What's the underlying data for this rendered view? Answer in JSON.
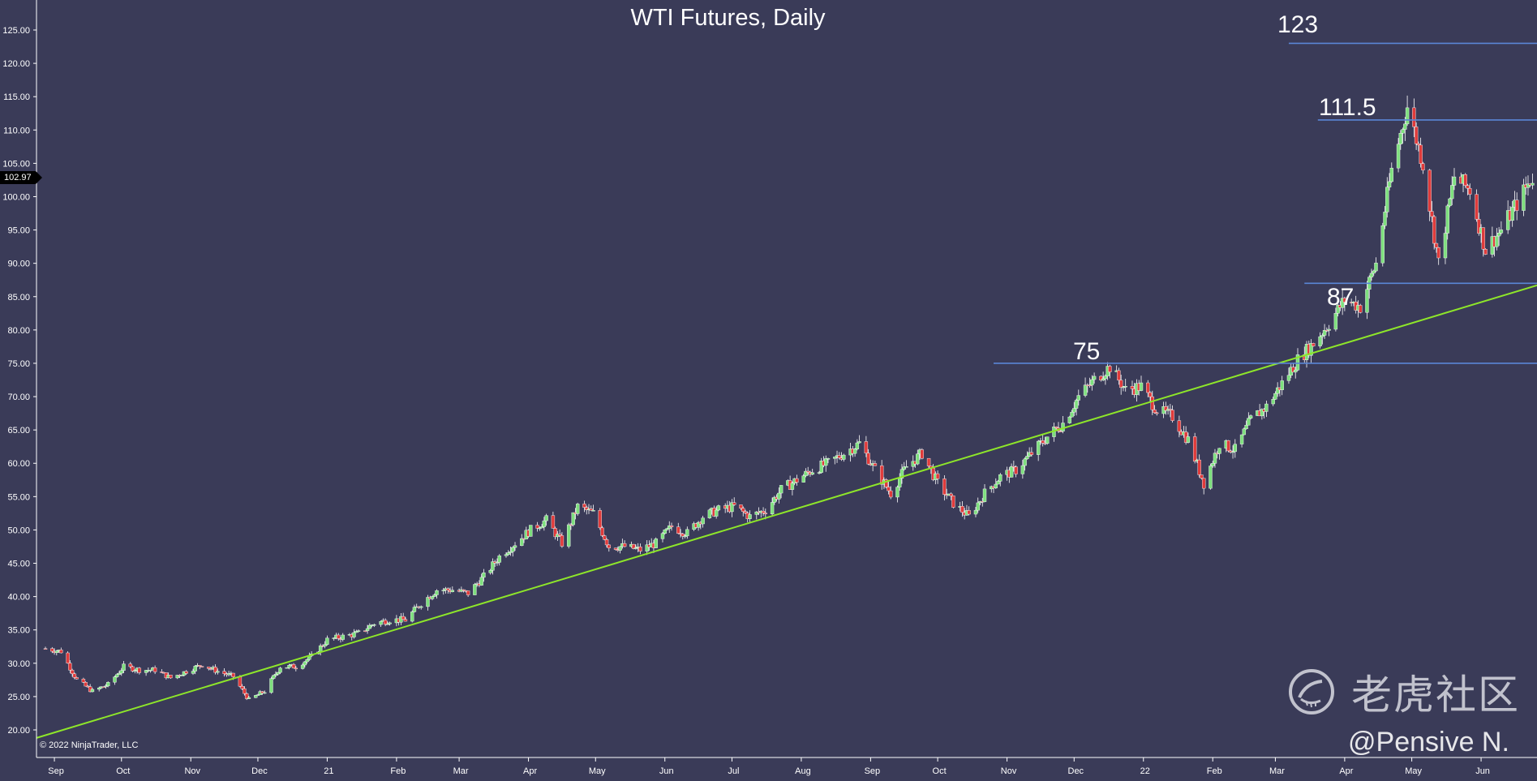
{
  "title": "WTI Futures, Daily",
  "copyright": "© 2022 NinjaTrader, LLC",
  "watermark": {
    "text": "老虎社区",
    "logo_icon": "tiger-logo-icon"
  },
  "handle": "@Pensive N.",
  "current_price": "102.97",
  "chart_data": {
    "type": "candlestick",
    "title": "WTI Futures, Daily",
    "y_axis": {
      "ticks": [
        "20.00",
        "25.00",
        "30.00",
        "35.00",
        "40.00",
        "45.00",
        "50.00",
        "55.00",
        "60.00",
        "65.00",
        "70.00",
        "75.00",
        "80.00",
        "85.00",
        "90.00",
        "95.00",
        "100.00",
        "105.00",
        "110.00",
        "115.00",
        "120.00",
        "125.00"
      ],
      "range": [
        18.6,
        127.1
      ]
    },
    "x_axis": {
      "ticks": [
        "Sep",
        "Oct",
        "Nov",
        "Dec",
        "21",
        "Feb",
        "Mar",
        "Apr",
        "May",
        "Jun",
        "Jul",
        "Aug",
        "Sep",
        "Oct",
        "Nov",
        "Dec",
        "22",
        "Feb",
        "Mar",
        "Apr",
        "May",
        "Jun"
      ],
      "tick_dates": [
        "2020-09-01",
        "2020-10-01",
        "2020-11-01",
        "2020-12-01",
        "2021-01-01",
        "2021-02-01",
        "2021-03-01",
        "2021-04-01",
        "2021-05-01",
        "2021-06-01",
        "2021-07-01",
        "2021-08-01",
        "2021-09-01",
        "2021-10-01",
        "2021-11-01",
        "2021-12-01",
        "2022-01-01",
        "2022-02-01",
        "2022-03-01",
        "2022-04-01",
        "2022-05-01",
        "2022-06-01"
      ],
      "range": [
        "2020-08-24",
        "2022-06-26"
      ]
    },
    "up_color": "#7ee07e",
    "down_color": "#e03b3b",
    "close_path": [
      [
        "2020-08-28",
        32.2
      ],
      [
        "2020-09-04",
        31.8
      ],
      [
        "2020-09-11",
        27.5
      ],
      [
        "2020-09-18",
        25.8
      ],
      [
        "2020-09-25",
        26.8
      ],
      [
        "2020-10-02",
        29.5
      ],
      [
        "2020-10-09",
        29.0
      ],
      [
        "2020-10-16",
        29.0
      ],
      [
        "2020-10-23",
        27.8
      ],
      [
        "2020-10-30",
        28.8
      ],
      [
        "2020-11-06",
        29.8
      ],
      [
        "2020-11-13",
        28.8
      ],
      [
        "2020-11-20",
        28.0
      ],
      [
        "2020-11-27",
        24.5
      ],
      [
        "2020-12-04",
        25.8
      ],
      [
        "2020-12-11",
        29.5
      ],
      [
        "2020-12-18",
        29.5
      ],
      [
        "2020-12-25",
        31.0
      ],
      [
        "2021-01-01",
        33.5
      ],
      [
        "2021-01-08",
        34.0
      ],
      [
        "2021-01-15",
        34.5
      ],
      [
        "2021-01-22",
        36.0
      ],
      [
        "2021-01-29",
        36.5
      ],
      [
        "2021-02-05",
        36.5
      ],
      [
        "2021-02-12",
        39.0
      ],
      [
        "2021-02-19",
        41.0
      ],
      [
        "2021-02-26",
        41.0
      ],
      [
        "2021-03-05",
        40.5
      ],
      [
        "2021-03-12",
        43.0
      ],
      [
        "2021-03-19",
        46.0
      ],
      [
        "2021-03-26",
        48.0
      ],
      [
        "2021-04-02",
        50.0
      ],
      [
        "2021-04-09",
        51.5
      ],
      [
        "2021-04-16",
        48.0
      ],
      [
        "2021-04-23",
        53.5
      ],
      [
        "2021-04-30",
        52.5
      ],
      [
        "2021-05-07",
        47.5
      ],
      [
        "2021-05-14",
        47.5
      ],
      [
        "2021-05-21",
        47.0
      ],
      [
        "2021-05-28",
        48.0
      ],
      [
        "2021-06-04",
        50.5
      ],
      [
        "2021-06-11",
        49.5
      ],
      [
        "2021-06-18",
        52.0
      ],
      [
        "2021-06-25",
        53.0
      ],
      [
        "2021-07-02",
        53.5
      ],
      [
        "2021-07-09",
        52.0
      ],
      [
        "2021-07-16",
        53.0
      ],
      [
        "2021-07-23",
        56.0
      ],
      [
        "2021-07-30",
        57.5
      ],
      [
        "2021-08-06",
        59.0
      ],
      [
        "2021-08-13",
        60.0
      ],
      [
        "2021-08-20",
        61.5
      ],
      [
        "2021-08-27",
        63.0
      ],
      [
        "2021-09-03",
        59.0
      ],
      [
        "2021-09-10",
        55.5
      ],
      [
        "2021-09-17",
        59.5
      ],
      [
        "2021-09-24",
        61.5
      ],
      [
        "2021-10-01",
        57.0
      ],
      [
        "2021-10-08",
        54.0
      ],
      [
        "2021-10-15",
        52.0
      ],
      [
        "2021-10-22",
        55.5
      ],
      [
        "2021-10-29",
        58.0
      ],
      [
        "2021-11-05",
        59.0
      ],
      [
        "2021-11-12",
        61.5
      ],
      [
        "2021-11-19",
        64.0
      ],
      [
        "2021-11-26",
        66.0
      ],
      [
        "2021-12-03",
        70.0
      ],
      [
        "2021-12-10",
        72.5
      ],
      [
        "2021-12-17",
        74.5
      ],
      [
        "2021-12-24",
        71.0
      ],
      [
        "2021-12-31",
        71.5
      ],
      [
        "2022-01-07",
        68.0
      ],
      [
        "2022-01-14",
        67.0
      ],
      [
        "2022-01-21",
        63.5
      ],
      [
        "2022-01-28",
        57.0
      ],
      [
        "2022-02-04",
        63.0
      ],
      [
        "2022-02-11",
        62.0
      ],
      [
        "2022-02-18",
        66.5
      ],
      [
        "2022-02-25",
        68.5
      ],
      [
        "2022-03-04",
        72.0
      ],
      [
        "2022-03-11",
        75.5
      ],
      [
        "2022-03-18",
        78.0
      ],
      [
        "2022-03-25",
        81.0
      ],
      [
        "2022-04-01",
        84.5
      ],
      [
        "2022-04-08",
        83.5
      ],
      [
        "2022-04-15",
        90.0
      ],
      [
        "2022-04-22",
        104.0
      ],
      [
        "2022-04-29",
        113.5
      ],
      [
        "2022-05-06",
        105.0
      ],
      [
        "2022-05-13",
        90.0
      ],
      [
        "2022-05-20",
        103.0
      ],
      [
        "2022-05-27",
        101.0
      ],
      [
        "2022-06-03",
        92.0
      ],
      [
        "2022-06-10",
        95.0
      ],
      [
        "2022-06-17",
        99.0
      ],
      [
        "2022-06-24",
        102.97
      ]
    ],
    "horizontal_levels": [
      {
        "value": 123,
        "label": "123",
        "from": "2022-03-07"
      },
      {
        "value": 111.5,
        "label": "111.5",
        "from": "2022-03-20"
      },
      {
        "value": 87,
        "label": "87",
        "from": "2022-03-14"
      },
      {
        "value": 75,
        "label": "75",
        "from": "2021-10-26"
      }
    ],
    "trendline": {
      "color": "#8ee62a",
      "from": [
        "2020-08-24",
        18.8
      ],
      "to": [
        "2022-06-26",
        86.7
      ]
    }
  }
}
